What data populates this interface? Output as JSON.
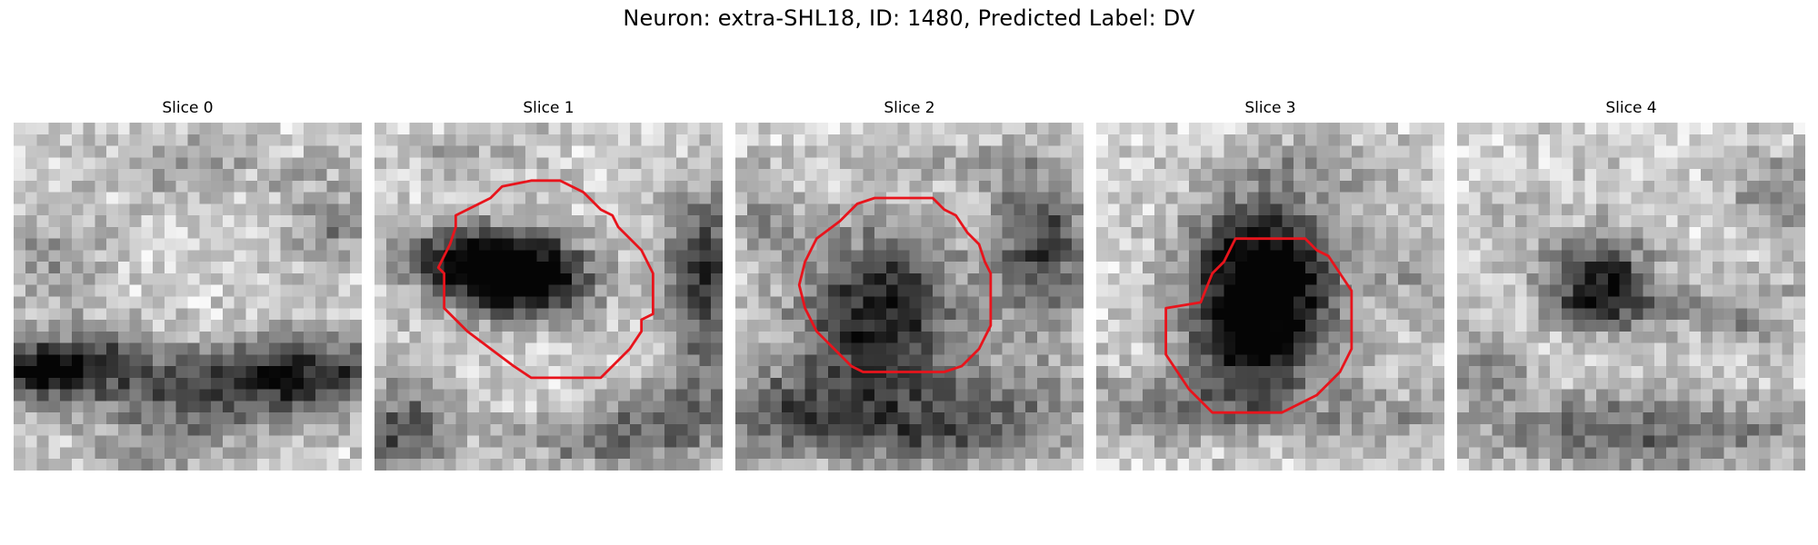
{
  "figure": {
    "title": "Neuron: extra-SHL18, ID: 1480, Predicted Label: DV"
  },
  "outline_color": "#e8141c",
  "slices": [
    {
      "title": "Slice 0",
      "has_outline": false
    },
    {
      "title": "Slice 1",
      "has_outline": true
    },
    {
      "title": "Slice 2",
      "has_outline": true
    },
    {
      "title": "Slice 3",
      "has_outline": true
    },
    {
      "title": "Slice 4",
      "has_outline": false
    }
  ]
}
